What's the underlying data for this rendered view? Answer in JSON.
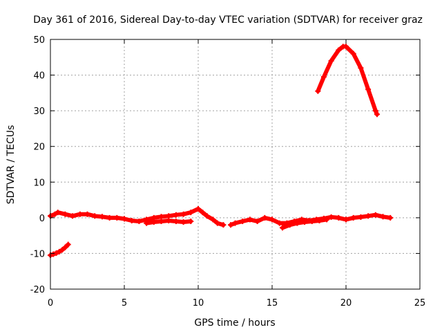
{
  "chart_data": {
    "type": "scatter",
    "title": "Day 361 of 2016, Sidereal Day-to-day VTEC variation (SDTVAR) for receiver graz",
    "xlabel": "GPS time / hours",
    "ylabel": "SDTVAR / TECUs",
    "xlim": [
      0,
      25
    ],
    "ylim": [
      -20,
      50
    ],
    "xticks": [
      0,
      5,
      10,
      15,
      20,
      25
    ],
    "yticks": [
      -20,
      -10,
      0,
      10,
      20,
      30,
      40,
      50
    ],
    "grid": true,
    "marker": "+",
    "series_color": "#ff0000",
    "series": [
      {
        "name": "SDTVAR",
        "segments": [
          {
            "x": [
              0.0,
              0.2,
              0.4,
              0.6,
              0.8,
              1.0,
              1.2
            ],
            "y": [
              -10.5,
              -10.2,
              -9.9,
              -9.5,
              -9.0,
              -8.3,
              -7.5
            ]
          },
          {
            "x": [
              0.0,
              0.3,
              0.5,
              1.0,
              1.5,
              2.0,
              2.5,
              3.0,
              3.5,
              4.0,
              4.5,
              5.0,
              5.5,
              6.0,
              6.5,
              7.0,
              7.5,
              8.0,
              8.5,
              9.0,
              9.5,
              10.0,
              10.3,
              10.6,
              11.0,
              11.3,
              11.7
            ],
            "y": [
              0.5,
              1.0,
              1.5,
              1.0,
              0.5,
              1.0,
              1.0,
              0.5,
              0.3,
              0.0,
              0.0,
              -0.3,
              -0.8,
              -1.0,
              -0.5,
              0.0,
              0.3,
              0.5,
              0.8,
              1.0,
              1.5,
              2.5,
              1.5,
              0.5,
              -0.5,
              -1.5,
              -2.0
            ]
          },
          {
            "x": [
              6.5,
              7.0,
              7.5,
              8.0,
              8.5,
              9.0,
              9.5
            ],
            "y": [
              -1.5,
              -1.2,
              -1.0,
              -0.8,
              -1.0,
              -1.2,
              -1.0
            ]
          },
          {
            "x": [
              12.2,
              12.5,
              13.0,
              13.5,
              14.0,
              14.5,
              15.0,
              15.5,
              16.0,
              16.5,
              17.0,
              17.5,
              18.0,
              18.5,
              19.0,
              19.5,
              20.0,
              20.5,
              21.0,
              21.5,
              22.0,
              22.5,
              23.0
            ],
            "y": [
              -2.0,
              -1.5,
              -1.0,
              -0.5,
              -1.0,
              0.0,
              -0.5,
              -1.5,
              -1.5,
              -1.0,
              -0.5,
              -0.8,
              -0.5,
              -0.2,
              0.2,
              0.0,
              -0.5,
              0.0,
              0.2,
              0.5,
              0.8,
              0.3,
              0.0
            ]
          },
          {
            "x": [
              15.7,
              16.2,
              16.7,
              17.2,
              17.7,
              18.2,
              18.7
            ],
            "y": [
              -2.8,
              -2.0,
              -1.5,
              -1.2,
              -1.0,
              -0.8,
              -0.5
            ]
          },
          {
            "x": [
              18.1,
              18.5,
              19.0,
              19.5,
              19.8,
              20.0,
              20.5,
              21.0,
              21.5,
              22.0,
              22.1
            ],
            "y": [
              35.5,
              39.5,
              44.0,
              47.0,
              48.0,
              48.0,
              46.0,
              42.0,
              36.0,
              30.0,
              29.0
            ]
          }
        ]
      }
    ]
  }
}
